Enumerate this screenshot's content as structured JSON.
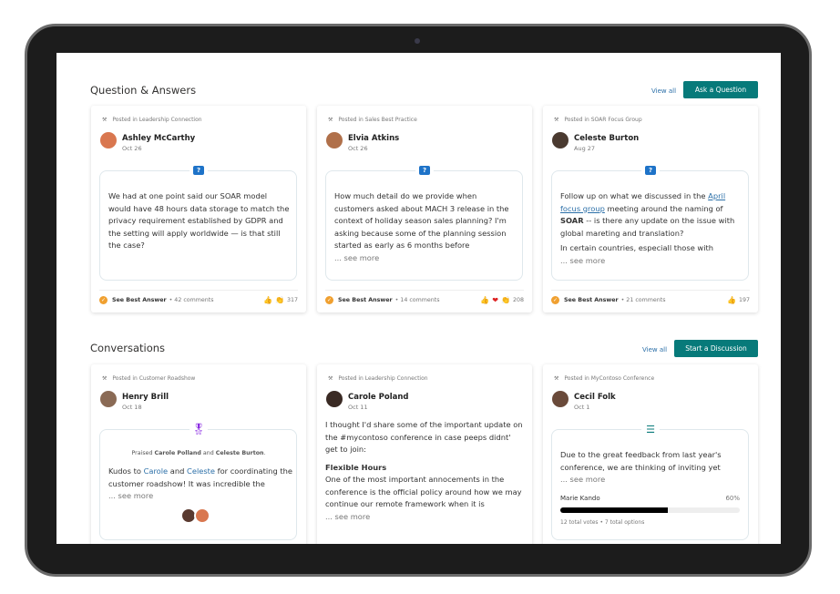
{
  "qa": {
    "title": "Question & Answers",
    "view_all": "View all",
    "button": "Ask a Question",
    "cards": [
      {
        "posted": "Posted in Leadership Connection",
        "name": "Ashley McCarthy",
        "date": "Oct 26",
        "text": "We had at one point said our SOAR model would have 48 hours data storage to match the privacy requirement established by GDPR and the setting will apply worldwide — is that still the case?",
        "best": "See Best Answer",
        "comments": "• 42 comments",
        "reactions": [
          "👍",
          "👏"
        ],
        "count": "317"
      },
      {
        "posted": "Posted in Sales Best Practice",
        "name": "Elvia Atkins",
        "date": "Oct 26",
        "text": "How much detail do we provide when customers asked about MACH 3 release in the context of holiday season sales planning? I'm asking because some of the planning session started as early as 6 months before",
        "more": "... see more",
        "best": "See Best Answer",
        "comments": "• 14 comments",
        "reactions": [
          "👍",
          "❤",
          "👏"
        ],
        "count": "208"
      },
      {
        "posted": "Posted in SOAR Focus Group",
        "name": "Celeste Burton",
        "date": "Aug 27",
        "text_a": "Follow up on what we discussed in the ",
        "link": "April focus group",
        "text_b": " meeting around the naming of ",
        "bold": "SOAR",
        "text_c": " -- is there any update on the issue with global mareting and translation?",
        "text_d": "In certain countries, especiall those with",
        "more": "... see more",
        "best": "See Best Answer",
        "comments": "• 21 comments",
        "reactions": [
          "👍"
        ],
        "count": "197"
      }
    ]
  },
  "conv": {
    "title": "Conversations",
    "view_all": "View all",
    "button": "Start a Discussion",
    "cards": [
      {
        "posted": "Posted in Customer Roadshow",
        "name": "Henry Brill",
        "date": "Oct 18",
        "praised_pre": "Praised ",
        "p1": "Carole Polland",
        "and": " and ",
        "p2": "Celeste Burton",
        "dot": ".",
        "k1": "Kudos to ",
        "l1": "Carole",
        "k2": " and ",
        "l2": "Celeste",
        "k3": " for coordinating the customer roadshow! It was incredible the",
        "more": "... see more"
      },
      {
        "posted": "Posted in Leadership Connection",
        "name": "Carole Poland",
        "date": "Oct 11",
        "text": "I thought I'd share some of the important update on the #mycontoso conference in case peeps didnt' get to join:",
        "heading": "Flexible Hours",
        "text2": "One of the most important annocements in the conference is the official policy around how we may continue our remote framework when it is",
        "more": "... see more"
      },
      {
        "posted": "Posted in MyContoso Conference",
        "name": "Cecil Folk",
        "date": "Oct 1",
        "text": "Due to the great feedback from last year's conference, we are thinking of inviting yet",
        "more": "... see more",
        "option": "Marie Kando",
        "percent": "60%",
        "fraction": 0.6,
        "stats": "12 total votes • 7 total options"
      }
    ]
  },
  "colors": {
    "accent": "#077a7a",
    "link": "#2b6fa8"
  }
}
